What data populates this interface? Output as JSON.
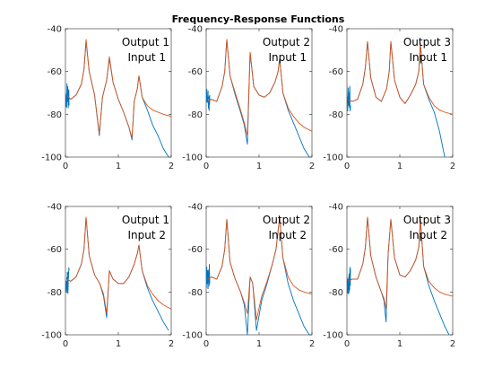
{
  "figure_title": "Frequency-Response Functions",
  "colors": {
    "measured": "#0072BD",
    "model": "#D95319"
  },
  "chart_data": [
    {
      "type": "line",
      "row": 0,
      "col": 0,
      "annotation": [
        "Output 1",
        "Input 1"
      ],
      "xlim": [
        0,
        2
      ],
      "ylim": [
        -100,
        -40
      ],
      "xticks": [
        0,
        1,
        2
      ],
      "yticks": [
        -100,
        -80,
        -60,
        -40
      ],
      "grid": false,
      "resonances": [
        0.39,
        0.83,
        1.39
      ],
      "antiresonances": [
        0.64,
        1.26
      ],
      "low_noise": [
        0.0,
        0.07
      ],
      "series": [
        {
          "key": "measured",
          "x": [
            0.02,
            0.1,
            0.2,
            0.3,
            0.35,
            0.39,
            0.45,
            0.55,
            0.64,
            0.7,
            0.78,
            0.83,
            0.9,
            1.0,
            1.1,
            1.2,
            1.26,
            1.3,
            1.36,
            1.39,
            1.45,
            1.55,
            1.65,
            1.75,
            1.85,
            1.95
          ],
          "y": [
            -71,
            -73,
            -71,
            -66,
            -59,
            -46,
            -60,
            -71,
            -90,
            -72,
            -64,
            -54,
            -65,
            -73,
            -79,
            -86,
            -92,
            -74,
            -68,
            -62,
            -72,
            -78,
            -85,
            -90,
            -96,
            -100
          ]
        },
        {
          "key": "model",
          "x": [
            0.02,
            0.1,
            0.2,
            0.3,
            0.35,
            0.39,
            0.45,
            0.55,
            0.64,
            0.7,
            0.78,
            0.83,
            0.9,
            1.0,
            1.1,
            1.2,
            1.26,
            1.3,
            1.36,
            1.39,
            1.45,
            1.55,
            1.65,
            1.75,
            1.85,
            2.0
          ],
          "y": [
            -71,
            -73,
            -71,
            -66,
            -59,
            -45,
            -60,
            -71,
            -89,
            -72,
            -64,
            -53,
            -65,
            -73,
            -79,
            -86,
            -91,
            -74,
            -68,
            -62,
            -72,
            -76,
            -78,
            -79,
            -80,
            -81
          ]
        }
      ]
    },
    {
      "type": "line",
      "row": 0,
      "col": 1,
      "annotation": [
        "Output 2",
        "Input 1"
      ],
      "xlim": [
        0,
        2
      ],
      "ylim": [
        -100,
        -40
      ],
      "xticks": [
        0,
        1,
        2
      ],
      "yticks": [
        -100,
        -80,
        -60,
        -40
      ],
      "grid": false,
      "resonances": [
        0.39,
        0.83,
        1.39
      ],
      "antiresonances": [
        0.78
      ],
      "low_noise": [
        0.0,
        0.07
      ],
      "series": [
        {
          "key": "measured",
          "x": [
            0.02,
            0.1,
            0.2,
            0.3,
            0.35,
            0.39,
            0.45,
            0.55,
            0.65,
            0.72,
            0.78,
            0.83,
            0.9,
            1.0,
            1.1,
            1.2,
            1.3,
            1.36,
            1.39,
            1.45,
            1.55,
            1.65,
            1.75,
            1.85,
            1.95
          ],
          "y": [
            -74,
            -73,
            -74,
            -67,
            -60,
            -45,
            -62,
            -71,
            -79,
            -85,
            -94,
            -51,
            -67,
            -71,
            -72,
            -70,
            -65,
            -60,
            -54,
            -70,
            -78,
            -84,
            -90,
            -96,
            -100
          ]
        },
        {
          "key": "model",
          "x": [
            0.02,
            0.1,
            0.2,
            0.3,
            0.35,
            0.39,
            0.45,
            0.55,
            0.65,
            0.72,
            0.78,
            0.83,
            0.9,
            1.0,
            1.1,
            1.2,
            1.3,
            1.36,
            1.39,
            1.45,
            1.55,
            1.65,
            1.75,
            1.85,
            2.0
          ],
          "y": [
            -74,
            -73,
            -74,
            -67,
            -60,
            -45,
            -62,
            -70,
            -78,
            -84,
            -90,
            -51,
            -67,
            -71,
            -72,
            -70,
            -65,
            -60,
            -54,
            -70,
            -77,
            -81,
            -84,
            -86,
            -88
          ]
        }
      ]
    },
    {
      "type": "line",
      "row": 0,
      "col": 2,
      "annotation": [
        "Output 3",
        "Input 1"
      ],
      "xlim": [
        0,
        2
      ],
      "ylim": [
        -100,
        -40
      ],
      "xticks": [
        0,
        1,
        2
      ],
      "yticks": [
        -100,
        -80,
        -60,
        -40
      ],
      "grid": false,
      "resonances": [
        0.39,
        0.83,
        1.39
      ],
      "antiresonances": [],
      "low_noise": [
        0.0,
        0.07
      ],
      "series": [
        {
          "key": "measured",
          "x": [
            0.02,
            0.1,
            0.2,
            0.3,
            0.35,
            0.39,
            0.45,
            0.55,
            0.65,
            0.75,
            0.8,
            0.83,
            0.9,
            1.0,
            1.1,
            1.2,
            1.3,
            1.36,
            1.39,
            1.45,
            1.55,
            1.65,
            1.75,
            1.85
          ],
          "y": [
            -73,
            -74,
            -73,
            -66,
            -58,
            -46,
            -63,
            -72,
            -74,
            -68,
            -60,
            -46,
            -64,
            -72,
            -75,
            -71,
            -66,
            -60,
            -47,
            -66,
            -73,
            -79,
            -88,
            -100
          ]
        },
        {
          "key": "model",
          "x": [
            0.02,
            0.1,
            0.2,
            0.3,
            0.35,
            0.39,
            0.45,
            0.55,
            0.65,
            0.75,
            0.8,
            0.83,
            0.9,
            1.0,
            1.1,
            1.2,
            1.3,
            1.36,
            1.39,
            1.45,
            1.55,
            1.65,
            1.75,
            1.85,
            2.0
          ],
          "y": [
            -73,
            -74,
            -73,
            -66,
            -58,
            -46,
            -63,
            -72,
            -74,
            -68,
            -60,
            -46,
            -64,
            -72,
            -75,
            -71,
            -66,
            -60,
            -47,
            -66,
            -72,
            -76,
            -78,
            -79,
            -80
          ]
        }
      ]
    },
    {
      "type": "line",
      "row": 1,
      "col": 0,
      "annotation": [
        "Output 1",
        "Input 2"
      ],
      "xlim": [
        0,
        2
      ],
      "ylim": [
        -100,
        -40
      ],
      "xticks": [
        0,
        1,
        2
      ],
      "yticks": [
        -100,
        -80,
        -60,
        -40
      ],
      "grid": false,
      "resonances": [
        0.39,
        0.83,
        1.39
      ],
      "antiresonances": [
        0.78
      ],
      "low_noise": [
        0.0,
        0.07
      ],
      "series": [
        {
          "key": "measured",
          "x": [
            0.02,
            0.1,
            0.2,
            0.3,
            0.35,
            0.39,
            0.45,
            0.55,
            0.65,
            0.72,
            0.78,
            0.83,
            0.9,
            1.0,
            1.1,
            1.2,
            1.3,
            1.36,
            1.39,
            1.45,
            1.55,
            1.65,
            1.75,
            1.85,
            1.95
          ],
          "y": [
            -74,
            -75,
            -73,
            -67,
            -60,
            -45,
            -63,
            -72,
            -76,
            -82,
            -92,
            -70,
            -74,
            -76,
            -76,
            -73,
            -67,
            -62,
            -58,
            -70,
            -78,
            -84,
            -89,
            -94,
            -98
          ]
        },
        {
          "key": "model",
          "x": [
            0.02,
            0.1,
            0.2,
            0.3,
            0.35,
            0.39,
            0.45,
            0.55,
            0.65,
            0.72,
            0.78,
            0.83,
            0.9,
            1.0,
            1.1,
            1.2,
            1.3,
            1.36,
            1.39,
            1.45,
            1.55,
            1.65,
            1.75,
            1.85,
            2.0
          ],
          "y": [
            -74,
            -75,
            -73,
            -67,
            -60,
            -45,
            -63,
            -72,
            -76,
            -81,
            -90,
            -70,
            -74,
            -76,
            -76,
            -73,
            -67,
            -62,
            -58,
            -70,
            -77,
            -81,
            -84,
            -86,
            -88
          ]
        }
      ]
    },
    {
      "type": "line",
      "row": 1,
      "col": 1,
      "annotation": [
        "Output 2",
        "Input 2"
      ],
      "xlim": [
        0,
        2
      ],
      "ylim": [
        -100,
        -40
      ],
      "xticks": [
        0,
        1,
        2
      ],
      "yticks": [
        -100,
        -80,
        -60,
        -40
      ],
      "grid": false,
      "resonances": [
        0.39,
        0.83,
        1.39
      ],
      "antiresonances": [
        0.78,
        0.95
      ],
      "low_noise": [
        0.0,
        0.07
      ],
      "series": [
        {
          "key": "measured",
          "x": [
            0.02,
            0.1,
            0.2,
            0.3,
            0.35,
            0.39,
            0.45,
            0.55,
            0.65,
            0.72,
            0.78,
            0.83,
            0.88,
            0.95,
            1.05,
            1.15,
            1.25,
            1.32,
            1.39,
            1.45,
            1.55,
            1.65,
            1.75,
            1.85,
            1.95
          ],
          "y": [
            -74,
            -73,
            -74,
            -68,
            -60,
            -46,
            -66,
            -74,
            -80,
            -86,
            -100,
            -73,
            -76,
            -98,
            -84,
            -76,
            -67,
            -60,
            -45,
            -64,
            -76,
            -84,
            -90,
            -96,
            -100
          ]
        },
        {
          "key": "model",
          "x": [
            0.02,
            0.1,
            0.2,
            0.3,
            0.35,
            0.39,
            0.45,
            0.55,
            0.65,
            0.72,
            0.78,
            0.83,
            0.88,
            0.95,
            1.05,
            1.15,
            1.25,
            1.32,
            1.39,
            1.45,
            1.55,
            1.65,
            1.75,
            1.85,
            2.0
          ],
          "y": [
            -74,
            -73,
            -74,
            -68,
            -60,
            -46,
            -66,
            -74,
            -80,
            -85,
            -90,
            -73,
            -76,
            -93,
            -82,
            -75,
            -67,
            -60,
            -45,
            -64,
            -73,
            -77,
            -79,
            -80,
            -81
          ]
        }
      ]
    },
    {
      "type": "line",
      "row": 1,
      "col": 2,
      "annotation": [
        "Output 3",
        "Input 2"
      ],
      "xlim": [
        0,
        2
      ],
      "ylim": [
        -100,
        -40
      ],
      "xticks": [
        0,
        1,
        2
      ],
      "yticks": [
        -100,
        -80,
        -60,
        -40
      ],
      "grid": false,
      "resonances": [
        0.39,
        0.83,
        1.39
      ],
      "antiresonances": [
        0.74
      ],
      "low_noise": [
        0.0,
        0.07
      ],
      "series": [
        {
          "key": "measured",
          "x": [
            0.02,
            0.1,
            0.2,
            0.3,
            0.35,
            0.39,
            0.45,
            0.55,
            0.65,
            0.7,
            0.74,
            0.78,
            0.83,
            0.9,
            1.0,
            1.1,
            1.2,
            1.3,
            1.36,
            1.39,
            1.45,
            1.55,
            1.65,
            1.75,
            1.85,
            1.93
          ],
          "y": [
            -75,
            -74,
            -74,
            -67,
            -59,
            -45,
            -63,
            -73,
            -80,
            -84,
            -94,
            -62,
            -46,
            -64,
            -72,
            -73,
            -70,
            -65,
            -59,
            -46,
            -68,
            -77,
            -84,
            -90,
            -96,
            -100
          ]
        },
        {
          "key": "model",
          "x": [
            0.02,
            0.1,
            0.2,
            0.3,
            0.35,
            0.39,
            0.45,
            0.55,
            0.65,
            0.7,
            0.74,
            0.78,
            0.83,
            0.9,
            1.0,
            1.1,
            1.2,
            1.3,
            1.36,
            1.39,
            1.45,
            1.55,
            1.65,
            1.75,
            1.85,
            2.0
          ],
          "y": [
            -75,
            -74,
            -74,
            -67,
            -59,
            -45,
            -63,
            -73,
            -80,
            -83,
            -88,
            -62,
            -46,
            -64,
            -72,
            -73,
            -70,
            -65,
            -59,
            -46,
            -68,
            -75,
            -78,
            -80,
            -81,
            -82
          ]
        }
      ]
    }
  ]
}
